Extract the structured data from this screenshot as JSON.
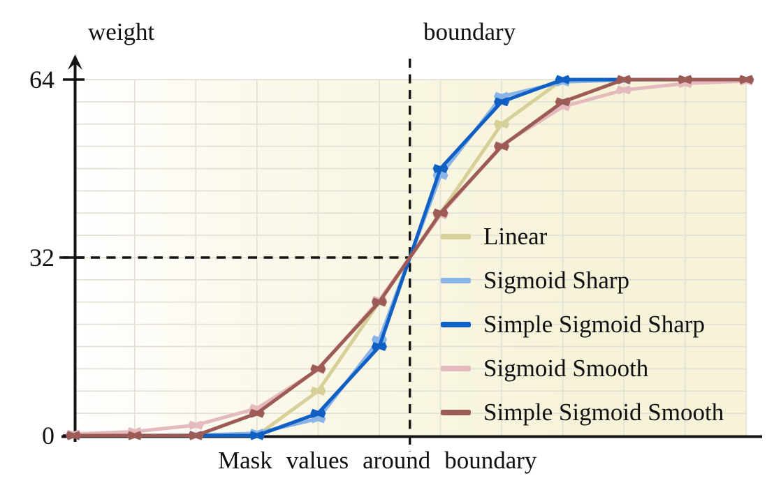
{
  "labels": {
    "y_axis_title": "weight",
    "boundary_title": "boundary",
    "x_axis_title": "Mask values around boundary"
  },
  "y_axis_ticks": [
    {
      "label": "64",
      "value": 64
    },
    {
      "label": "32",
      "value": 32
    },
    {
      "label": "0",
      "value": 0
    }
  ],
  "legend": {
    "items": [
      {
        "label": "Linear",
        "color": "#d6cf97"
      },
      {
        "label": "Sigmoid Sharp",
        "color": "#8ab3e6"
      },
      {
        "label": "Simple Sigmoid Sharp",
        "color": "#1060c4"
      },
      {
        "label": "Sigmoid Smooth",
        "color": "#e5babf"
      },
      {
        "label": "Simple Sigmoid Smooth",
        "color": "#9d5b56"
      }
    ]
  },
  "colors": {
    "axis": "#141414",
    "dashed": "#141414",
    "grid": "#e3e1d6",
    "plot_bg_left": "#ffffff",
    "plot_bg_mid": "#fbf8ea",
    "plot_bg_right": "#f7f3d9"
  },
  "chart_data": {
    "type": "line",
    "title": "",
    "xlabel": "Mask values around boundary",
    "ylabel": "weight",
    "x_index": [
      0,
      1,
      2,
      3,
      4,
      5,
      6,
      7,
      8,
      9,
      10,
      11
    ],
    "ylim": [
      0,
      64
    ],
    "y_tick_values": [
      0,
      32,
      64
    ],
    "y_gridline_step": 4,
    "x_gridline_at_every_point": true,
    "grid": true,
    "legend_position": "center-right-inside",
    "annotations": {
      "boundary_vertical_dashed_x": 5.5,
      "boundary_label": "boundary",
      "half_weight_horizontal_dashed_y": 32,
      "note": "all curves cross weight=32 at the boundary"
    },
    "series": [
      {
        "name": "Linear",
        "color": "#d6cf97",
        "values": [
          0,
          0,
          0,
          0,
          8,
          24,
          40,
          56,
          64,
          64,
          64,
          64
        ]
      },
      {
        "name": "Sigmoid Sharp",
        "color": "#8ab3e6",
        "values": [
          0,
          0.01,
          0.06,
          0.43,
          3.03,
          17.22,
          46.78,
          60.97,
          63.57,
          63.94,
          63.99,
          64
        ]
      },
      {
        "name": "Simple Sigmoid Sharp",
        "color": "#1060c4",
        "values": [
          0,
          0,
          0,
          0,
          4,
          16,
          48,
          60,
          64,
          64,
          64,
          64
        ]
      },
      {
        "name": "Sigmoid Smooth",
        "color": "#e5babf",
        "values": [
          0.26,
          0.7,
          1.87,
          4.88,
          11.83,
          24.33,
          39.67,
          52.17,
          59.12,
          62.13,
          63.3,
          63.74
        ]
      },
      {
        "name": "Simple Sigmoid Smooth",
        "color": "#9d5b56",
        "values": [
          0,
          0,
          0,
          4,
          12,
          24,
          40,
          52,
          60,
          64,
          64,
          64
        ]
      }
    ]
  }
}
